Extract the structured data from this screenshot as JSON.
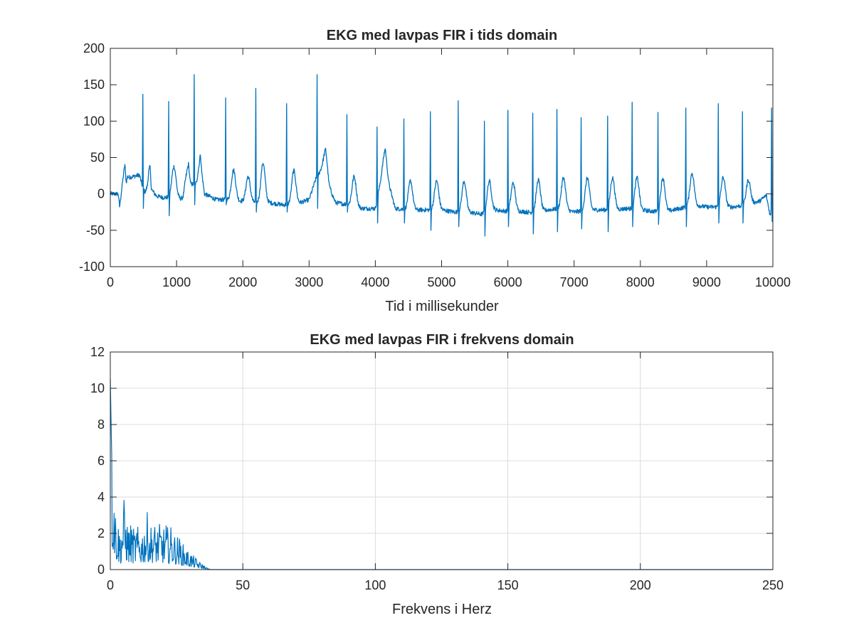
{
  "chart_data": [
    {
      "type": "line",
      "title": "EKG med lavpas FIR i tids domain",
      "xlabel": "Tid i millisekunder",
      "ylabel": "",
      "xlim": [
        0,
        10000
      ],
      "ylim": [
        -100,
        200
      ],
      "grid": false,
      "xticks": [
        "0",
        "1000",
        "2000",
        "3000",
        "4000",
        "5000",
        "6000",
        "7000",
        "8000",
        "9000",
        "10000"
      ],
      "yticks": [
        "-100",
        "-50",
        "0",
        "50",
        "100",
        "150",
        "200"
      ],
      "line_color": "#0072BD",
      "series": [
        {
          "baseline_points": [
            [
              0,
              0
            ],
            [
              120,
              0
            ],
            [
              140,
              -18
            ],
            [
              200,
              22
            ],
            [
              220,
              35
            ],
            [
              240,
              12
            ],
            [
              260,
              22
            ],
            [
              440,
              26
            ],
            [
              500,
              5
            ],
            [
              530,
              2
            ],
            [
              560,
              10
            ],
            [
              580,
              28
            ],
            [
              600,
              35
            ],
            [
              620,
              5
            ],
            [
              700,
              -3
            ],
            [
              800,
              -5
            ],
            [
              1000,
              -5
            ],
            [
              1100,
              -8
            ],
            [
              1150,
              10
            ],
            [
              1180,
              30
            ],
            [
              1210,
              12
            ],
            [
              1300,
              15
            ],
            [
              1340,
              40
            ],
            [
              1360,
              55
            ],
            [
              1380,
              30
            ],
            [
              1420,
              0
            ],
            [
              1600,
              -8
            ],
            [
              1800,
              -8
            ],
            [
              2000,
              -10
            ],
            [
              2200,
              -12
            ],
            [
              2400,
              -12
            ],
            [
              2600,
              -15
            ],
            [
              2800,
              -14
            ],
            [
              3000,
              -8
            ],
            [
              3100,
              20
            ],
            [
              3250,
              45
            ],
            [
              3300,
              10
            ],
            [
              3400,
              -12
            ],
            [
              3600,
              -15
            ],
            [
              3800,
              -20
            ],
            [
              4000,
              -20
            ],
            [
              4150,
              50
            ],
            [
              4200,
              15
            ],
            [
              4300,
              -20
            ],
            [
              4500,
              -22
            ],
            [
              4800,
              -22
            ],
            [
              5000,
              -22
            ],
            [
              5200,
              -25
            ],
            [
              5400,
              -25
            ],
            [
              5600,
              -28
            ],
            [
              5800,
              -22
            ],
            [
              6000,
              -24
            ],
            [
              6200,
              -24
            ],
            [
              6400,
              -26
            ],
            [
              6600,
              -22
            ],
            [
              6800,
              -20
            ],
            [
              7000,
              -25
            ],
            [
              7200,
              -22
            ],
            [
              7400,
              -22
            ],
            [
              7600,
              -22
            ],
            [
              7800,
              -20
            ],
            [
              8000,
              -22
            ],
            [
              8200,
              -24
            ],
            [
              8400,
              -24
            ],
            [
              8600,
              -20
            ],
            [
              8800,
              -15
            ],
            [
              9000,
              -18
            ],
            [
              9200,
              -18
            ],
            [
              9400,
              -18
            ],
            [
              9600,
              -15
            ],
            [
              9800,
              -10
            ],
            [
              9900,
              -2
            ],
            [
              9960,
              -30
            ],
            [
              10000,
              -20
            ]
          ],
          "beats": [
            {
              "t": 495,
              "peak": 137,
              "trough": -20
            },
            {
              "t": 885,
              "peak": 127,
              "trough": -30
            },
            {
              "t": 1270,
              "peak": 164,
              "trough": -15
            },
            {
              "t": 1745,
              "peak": 132,
              "trough": -15
            },
            {
              "t": 2200,
              "peak": 145,
              "trough": -25
            },
            {
              "t": 2665,
              "peak": 124,
              "trough": -25
            },
            {
              "t": 3125,
              "peak": 164,
              "trough": -20
            },
            {
              "t": 3575,
              "peak": 109,
              "trough": -25
            },
            {
              "t": 4030,
              "peak": 92,
              "trough": -40
            },
            {
              "t": 4435,
              "peak": 103,
              "trough": -40
            },
            {
              "t": 4835,
              "peak": 113,
              "trough": -50
            },
            {
              "t": 5255,
              "peak": 128,
              "trough": -45
            },
            {
              "t": 5650,
              "peak": 100,
              "trough": -58
            },
            {
              "t": 6005,
              "peak": 115,
              "trough": -45
            },
            {
              "t": 6380,
              "peak": 111,
              "trough": -55
            },
            {
              "t": 6745,
              "peak": 116,
              "trough": -52
            },
            {
              "t": 7110,
              "peak": 105,
              "trough": -48
            },
            {
              "t": 7510,
              "peak": 107,
              "trough": -52
            },
            {
              "t": 7880,
              "peak": 126,
              "trough": -45
            },
            {
              "t": 8270,
              "peak": 112,
              "trough": -42
            },
            {
              "t": 8690,
              "peak": 118,
              "trough": -45
            },
            {
              "t": 9180,
              "peak": 124,
              "trough": -40
            },
            {
              "t": 9545,
              "peak": 113,
              "trough": -40
            },
            {
              "t": 9985,
              "peak": 118,
              "trough": -38
            }
          ],
          "twaves": [
            {
              "t": 210,
              "h": 35
            },
            {
              "t": 590,
              "h": 35
            },
            {
              "t": 960,
              "h": 45
            },
            {
              "t": 1150,
              "h": 30
            },
            {
              "t": 1860,
              "h": 40
            },
            {
              "t": 2080,
              "h": 30
            },
            {
              "t": 2305,
              "h": 52
            },
            {
              "t": 2770,
              "h": 40
            },
            {
              "t": 3250,
              "h": 64
            },
            {
              "t": 3680,
              "h": 31
            },
            {
              "t": 4140,
              "h": 61
            },
            {
              "t": 4530,
              "h": 25
            },
            {
              "t": 4925,
              "h": 25
            },
            {
              "t": 5340,
              "h": 25
            },
            {
              "t": 5720,
              "h": 25
            },
            {
              "t": 6080,
              "h": 22
            },
            {
              "t": 6460,
              "h": 27
            },
            {
              "t": 6840,
              "h": 30
            },
            {
              "t": 7200,
              "h": 30
            },
            {
              "t": 7580,
              "h": 30
            },
            {
              "t": 7950,
              "h": 30
            },
            {
              "t": 8340,
              "h": 30
            },
            {
              "t": 8780,
              "h": 36
            },
            {
              "t": 9250,
              "h": 30
            },
            {
              "t": 9630,
              "h": 25
            }
          ]
        }
      ]
    },
    {
      "type": "line",
      "title": "EKG med lavpas FIR i frekvens domain",
      "xlabel": "Frekvens i Herz",
      "ylabel": "",
      "xlim": [
        0,
        250
      ],
      "ylim": [
        0,
        12
      ],
      "grid": true,
      "xticks": [
        "0",
        "50",
        "100",
        "150",
        "200",
        "250"
      ],
      "yticks": [
        "0",
        "2",
        "4",
        "6",
        "8",
        "10",
        "12"
      ],
      "line_color": "#0072BD",
      "series": [
        {
          "envelope": [
            [
              0,
              10.2
            ],
            [
              0.5,
              7.2
            ],
            [
              1.0,
              6.0
            ],
            [
              1.5,
              5.4
            ],
            [
              2,
              3.4
            ],
            [
              3,
              2.6
            ],
            [
              4,
              2.2
            ],
            [
              5,
              4.1
            ],
            [
              6,
              3.0
            ],
            [
              7,
              2.4
            ],
            [
              8,
              2.6
            ],
            [
              9,
              2.2
            ],
            [
              10,
              2.4
            ],
            [
              11,
              2.3
            ],
            [
              12,
              2.2
            ],
            [
              13,
              2.6
            ],
            [
              14,
              3.2
            ],
            [
              15,
              2.4
            ],
            [
              16,
              2.6
            ],
            [
              17,
              2.5
            ],
            [
              18,
              2.4
            ],
            [
              19,
              2.6
            ],
            [
              20,
              2.3
            ],
            [
              21,
              2.6
            ],
            [
              22,
              2.2
            ],
            [
              23,
              2.4
            ],
            [
              24,
              2.0
            ],
            [
              25,
              1.9
            ],
            [
              26,
              1.8
            ],
            [
              27,
              1.5
            ],
            [
              28,
              1.3
            ],
            [
              29,
              1.1
            ],
            [
              30,
              1.0
            ],
            [
              31,
              0.8
            ],
            [
              32,
              0.7
            ],
            [
              33,
              0.5
            ],
            [
              34,
              0.4
            ],
            [
              35,
              0.3
            ],
            [
              36,
              0.15
            ],
            [
              37,
              0.05
            ],
            [
              38,
              0.0
            ],
            [
              250,
              0.0
            ]
          ],
          "notes": "Spectrum magnitude is dense noise beneath this envelope from 0 to ~38 Hz and ~0 above."
        }
      ]
    }
  ]
}
